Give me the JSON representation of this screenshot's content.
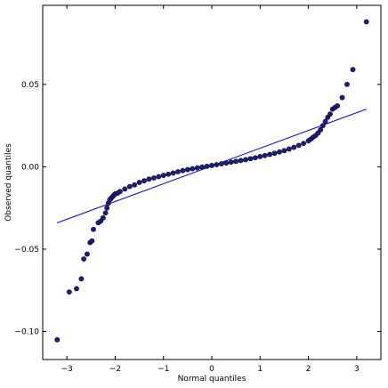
{
  "chart_data": {
    "type": "scatter",
    "title": "",
    "xlabel": "Normal quantiles",
    "ylabel": "Observed quantiles",
    "xlim": [
      -3.5,
      3.5
    ],
    "ylim": [
      -0.117,
      0.098
    ],
    "xticks": [
      -3,
      -2,
      -1,
      0,
      1,
      2,
      3
    ],
    "xtick_labels": [
      "−3",
      "−2",
      "−1",
      "0",
      "1",
      "2",
      "3"
    ],
    "yticks": [
      -0.1,
      -0.05,
      0.0,
      0.05
    ],
    "ytick_labels": [
      "−0.10",
      "−0.05",
      "0.00",
      "0.05"
    ],
    "grid": false,
    "legend": "none",
    "colors": {
      "points": "#1f1f7a",
      "point_edge": "#000033",
      "line": "#0000ee",
      "frame": "#000000"
    },
    "series": [
      {
        "kind": "points",
        "x": [
          -3.2,
          -2.95,
          -2.8,
          -2.7,
          -2.65,
          -2.58,
          -2.52,
          -2.48,
          -2.45,
          -2.35,
          -2.3,
          -2.25,
          -2.2,
          -2.17,
          -2.14,
          -2.11,
          -2.08,
          -2.05,
          -2.02,
          -2.0,
          -1.95,
          -1.9,
          -1.8,
          -1.7,
          -1.6,
          -1.5,
          -1.4,
          -1.3,
          -1.2,
          -1.1,
          -1.0,
          -0.9,
          -0.8,
          -0.7,
          -0.6,
          -0.5,
          -0.4,
          -0.3,
          -0.2,
          -0.1,
          0.0,
          0.1,
          0.2,
          0.3,
          0.4,
          0.5,
          0.6,
          0.7,
          0.8,
          0.9,
          1.0,
          1.1,
          1.2,
          1.3,
          1.4,
          1.5,
          1.6,
          1.7,
          1.8,
          1.9,
          2.0,
          2.05,
          2.1,
          2.15,
          2.2,
          2.25,
          2.3,
          2.35,
          2.4,
          2.45,
          2.5,
          2.55,
          2.6,
          2.7,
          2.8,
          2.92,
          3.2
        ],
        "y": [
          -0.105,
          -0.076,
          -0.074,
          -0.068,
          -0.056,
          -0.053,
          -0.046,
          -0.045,
          -0.038,
          -0.034,
          -0.033,
          -0.031,
          -0.028,
          -0.025,
          -0.022,
          -0.02,
          -0.019,
          -0.018,
          -0.017,
          -0.0165,
          -0.016,
          -0.015,
          -0.0135,
          -0.012,
          -0.011,
          -0.0095,
          -0.0085,
          -0.0075,
          -0.0068,
          -0.006,
          -0.0052,
          -0.0045,
          -0.0038,
          -0.003,
          -0.0023,
          -0.0017,
          -0.0012,
          -0.0007,
          -0.0002,
          0.0003,
          0.0008,
          0.0013,
          0.0018,
          0.0023,
          0.0028,
          0.0033,
          0.0038,
          0.0043,
          0.0049,
          0.0055,
          0.0062,
          0.0068,
          0.0075,
          0.0082,
          0.009,
          0.0098,
          0.0108,
          0.0118,
          0.013,
          0.0142,
          0.0158,
          0.0168,
          0.018,
          0.019,
          0.0205,
          0.0225,
          0.025,
          0.0275,
          0.03,
          0.032,
          0.035,
          0.036,
          0.037,
          0.042,
          0.05,
          0.059,
          0.088
        ]
      },
      {
        "kind": "reference_line",
        "x": [
          -3.2,
          3.2
        ],
        "y": [
          -0.034,
          0.035
        ]
      }
    ]
  }
}
